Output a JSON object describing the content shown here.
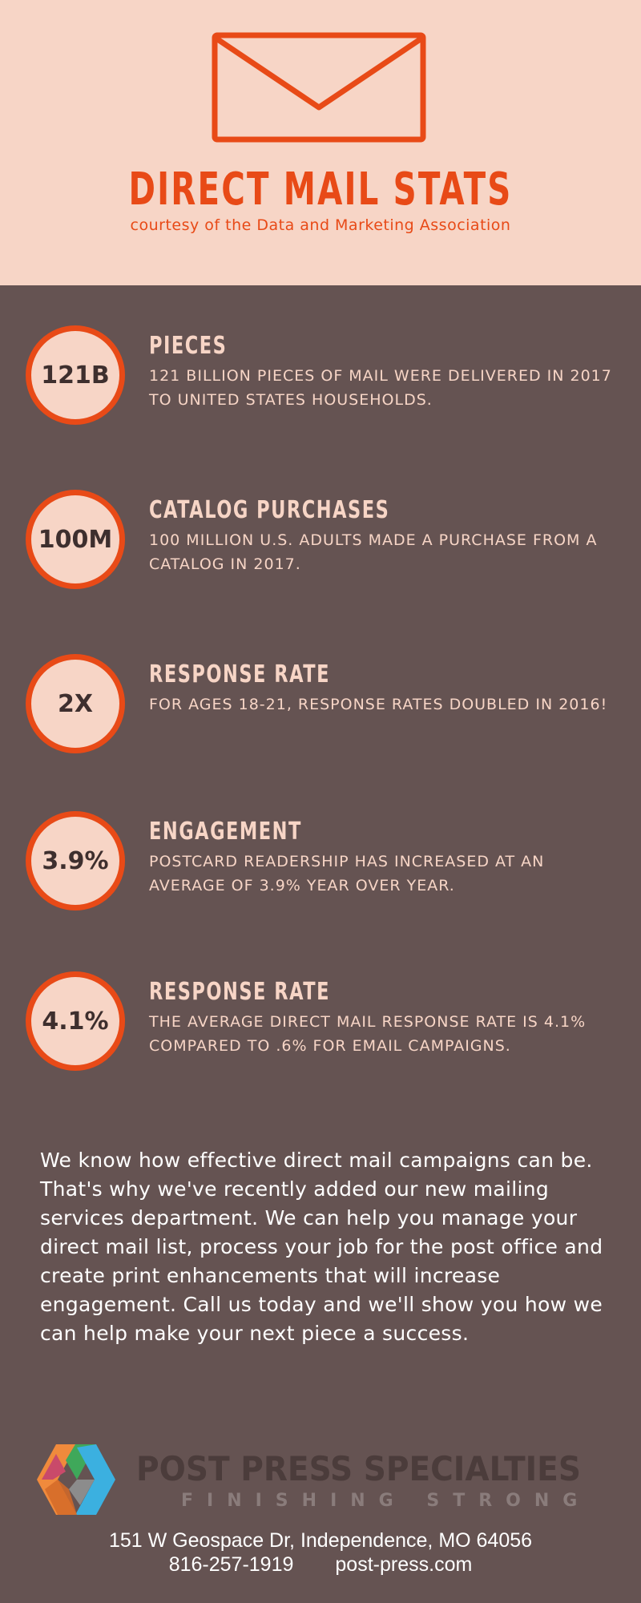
{
  "header": {
    "title": "DIRECT MAIL STATS",
    "subtitle": "courtesy of the Data and Marketing Association",
    "icon": "envelope-icon",
    "background": "#f7d5c6",
    "accent": "#e84a17"
  },
  "stats": [
    {
      "value": "121B",
      "heading": "PIECES",
      "description": "121 BILLION PIECES OF MAIL WERE DELIVERED IN 2017 TO UNITED STATES HOUSEHOLDS."
    },
    {
      "value": "100M",
      "heading": "CATALOG PURCHASES",
      "description": "100 MILLION U.S. ADULTS MADE A PURCHASE FROM A CATALOG IN 2017."
    },
    {
      "value": "2X",
      "heading": "RESPONSE RATE",
      "description": "FOR AGES 18-21, RESPONSE RATES DOUBLED IN 2016!"
    },
    {
      "value": "3.9%",
      "heading": "ENGAGEMENT",
      "description": "POSTCARD READERSHIP HAS INCREASED AT AN AVERAGE OF 3.9% YEAR OVER YEAR."
    },
    {
      "value": "4.1%",
      "heading": "RESPONSE RATE",
      "description": "THE AVERAGE DIRECT MAIL RESPONSE RATE IS 4.1% COMPARED TO .6% FOR EMAIL CAMPAIGNS."
    }
  ],
  "body": {
    "paragraph": "We know how effective direct mail campaigns can be. That's why we've recently added our new mailing services department. We can help you manage your direct mail list, process your job for the post office and create print enhancements that will increase engagement. Call us today and we'll show you how we can help make your next piece a success."
  },
  "footer": {
    "company": "POST PRESS SPECIALTIES",
    "tagline": "FINISHING STRONG",
    "address": "151 W Geospace Dr, Independence, MO 64056",
    "phone": "816-257-1919",
    "website": "post-press.com",
    "background": "#655352"
  }
}
